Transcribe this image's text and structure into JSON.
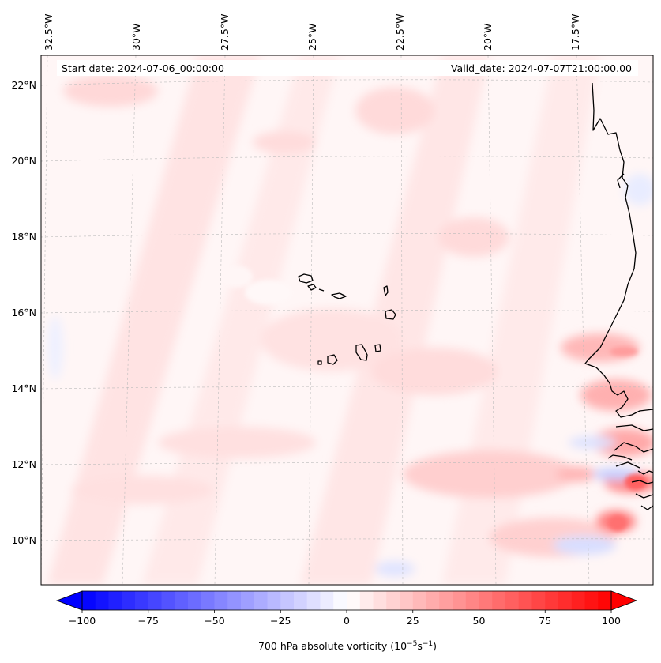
{
  "map": {
    "start_date": "Start date: 2024-07-06_00:00:00",
    "valid_date": "Valid_date: 2024-07-07T21:00:00.00",
    "longitude_labels": [
      "32.5°W",
      "30°W",
      "27.5°W",
      "25°W",
      "22.5°W",
      "20°W",
      "17.5°W"
    ],
    "latitude_labels": [
      "22°N",
      "20°N",
      "18°N",
      "16°N",
      "14°N",
      "12°N",
      "10°N"
    ],
    "field": "700 hPa absolute vorticity",
    "gridlines": true
  },
  "colorbar": {
    "ticks": [
      "−100",
      "−75",
      "−50",
      "−25",
      "0",
      "25",
      "50",
      "75",
      "100"
    ],
    "range": [
      -100,
      100
    ],
    "label": "700 hPa absolute vorticity (10",
    "label_exp1": "−5",
    "label_mid": "s",
    "label_exp2": "−1",
    "label_end": ")",
    "extend": "both",
    "colors": {
      "negative": "#0000ff",
      "zero": "#ffffff",
      "positive": "#ff0000"
    }
  }
}
